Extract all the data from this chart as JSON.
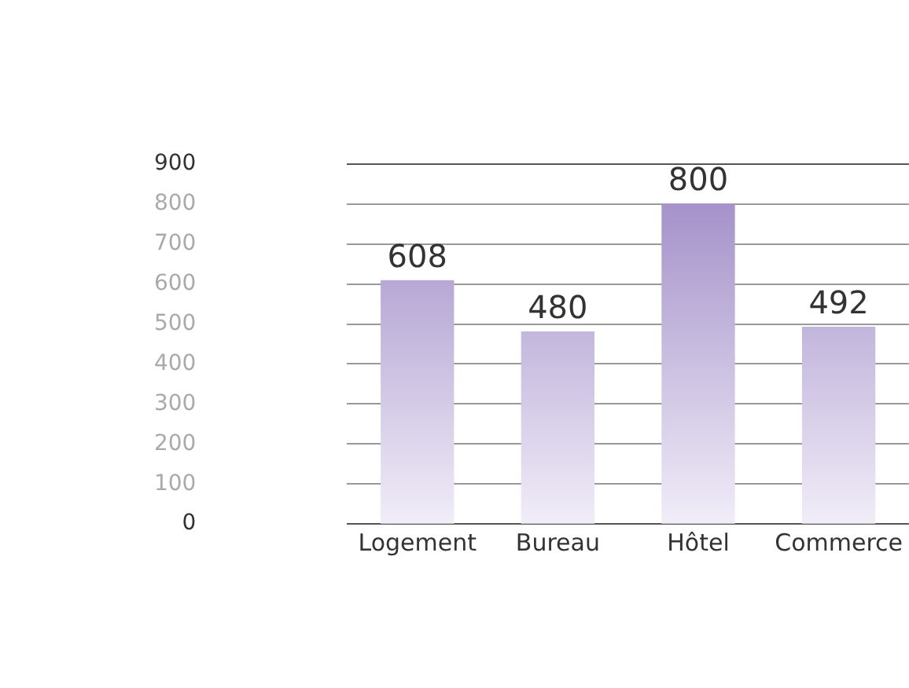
{
  "chart_data": {
    "type": "bar",
    "categories": [
      "Logement",
      "Bureau",
      "Hôtel",
      "Commerce"
    ],
    "values": [
      608,
      480,
      800,
      492
    ],
    "color": "#9b87c4",
    "ylim": [
      0,
      900
    ],
    "yticks": [
      0,
      100,
      200,
      300,
      400,
      500,
      600,
      700,
      800,
      900
    ],
    "grid": "y",
    "data_labels": true,
    "legend": false
  }
}
